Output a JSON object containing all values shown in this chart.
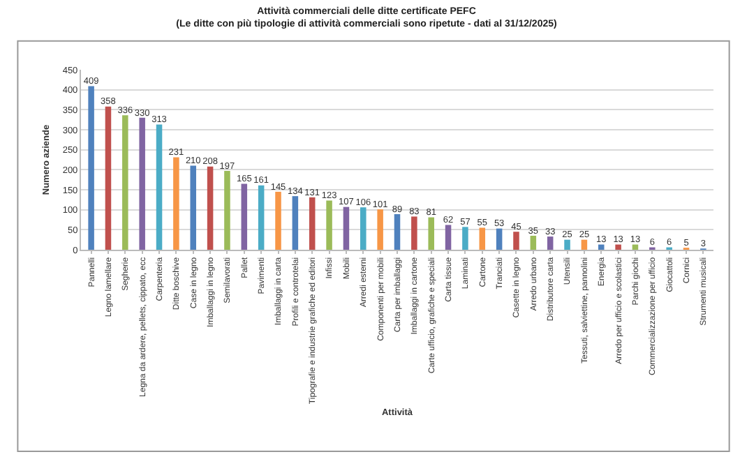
{
  "chart_data": {
    "type": "bar",
    "title": "Attività commerciali delle ditte certificate PEFC",
    "subtitle": "(Le ditte con più tipologie di attività commerciali sono ripetute - dati al 31/12/2025)",
    "xlabel": "Attività",
    "ylabel": "Numero aziende",
    "categories": [
      "Pannelli",
      "Legno lamellare",
      "Segherie",
      "Legna da ardere, pellets, cippato, ecc",
      "Carpenteria",
      "Ditte boschive",
      "Case in legno",
      "Imballaggi in legno",
      "Semilavorati",
      "Pallet",
      "Pavimenti",
      "Imballaggi in carta",
      "Profili e controtelai",
      "Tipografie e industrie grafiche ed editori",
      "Infissi",
      "Mobili",
      "Arredi esterni",
      "Componenti per mobili",
      "Carta per imballaggi",
      "Imballaggi in cartone",
      "Carte ufficio, grafiche e speciali",
      "Carta tissue",
      "Laminati",
      "Cartone",
      "Tranciati",
      "Casette in legno",
      "Arredo urbano",
      "Distributore carta",
      "Utensili",
      "Tessuti, salviettine, pannolini",
      "Energia",
      "Arredo per ufficio e scolastici",
      "Parchi giochi",
      "Commercializzazione per ufficio",
      "Giocattoli",
      "Cornici",
      "Strumenti musicali"
    ],
    "values": [
      409,
      358,
      336,
      330,
      313,
      231,
      210,
      208,
      197,
      165,
      161,
      145,
      134,
      131,
      123,
      107,
      106,
      101,
      89,
      83,
      81,
      62,
      57,
      55,
      53,
      45,
      35,
      33,
      25,
      25,
      13,
      13,
      13,
      6,
      6,
      5,
      3
    ],
    "colors": [
      "#4f81bd",
      "#c0504d",
      "#9bbb59",
      "#8064a2",
      "#4bacc6",
      "#f79646",
      "#4f81bd",
      "#c0504d",
      "#9bbb59",
      "#8064a2",
      "#4bacc6",
      "#f79646",
      "#4f81bd",
      "#c0504d",
      "#9bbb59",
      "#8064a2",
      "#4bacc6",
      "#f79646",
      "#4f81bd",
      "#c0504d",
      "#9bbb59",
      "#8064a2",
      "#4bacc6",
      "#f79646",
      "#4f81bd",
      "#c0504d",
      "#9bbb59",
      "#8064a2",
      "#4bacc6",
      "#f79646",
      "#4f81bd",
      "#c0504d",
      "#9bbb59",
      "#8064a2",
      "#4bacc6",
      "#f79646",
      "#4f81bd"
    ],
    "ylim": [
      0,
      450
    ],
    "yticks": [
      0,
      50,
      100,
      150,
      200,
      250,
      300,
      350,
      400,
      450
    ],
    "grid": "y",
    "data_labels": true
  }
}
